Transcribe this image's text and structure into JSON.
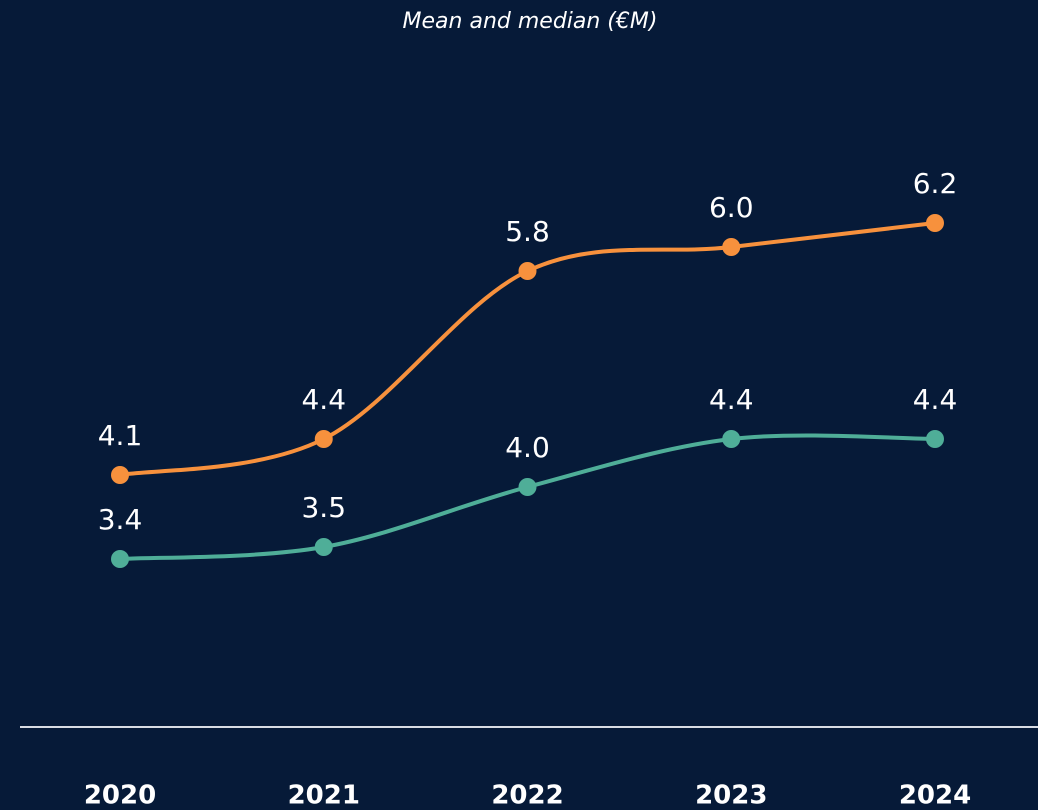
{
  "chart_data": {
    "type": "line",
    "title": "Mean and median (€M)",
    "categories": [
      "2020",
      "2021",
      "2022",
      "2023",
      "2024"
    ],
    "series": [
      {
        "color": "#f7913d",
        "values": [
          4.1,
          4.4,
          5.8,
          6.0,
          6.2
        ],
        "value_labels": [
          "4.1",
          "4.4",
          "5.8",
          "6.0",
          "6.2"
        ]
      },
      {
        "color": "#4fae98",
        "values": [
          3.4,
          3.5,
          4.0,
          4.4,
          4.4
        ],
        "value_labels": [
          "3.4",
          "3.5",
          "4.0",
          "4.4",
          "4.4"
        ]
      }
    ],
    "ylim": [
      2.0,
      7.5
    ]
  }
}
